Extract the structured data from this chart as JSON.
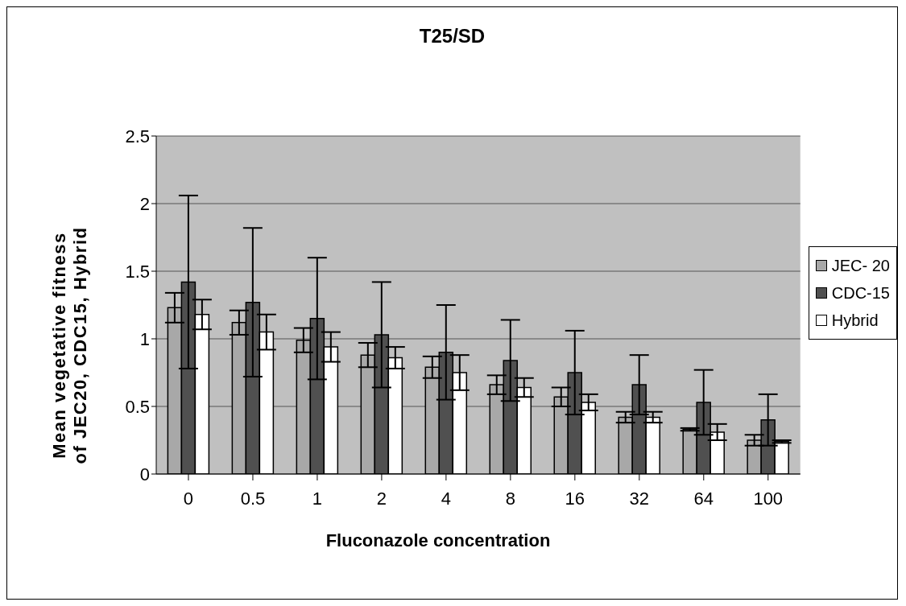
{
  "chart_data": {
    "type": "bar",
    "title": "T25/SD",
    "xlabel": "Fluconazole concentration",
    "ylabel": "Mean vegetative fitness of JEC20, CDC15, Hybrid",
    "categories": [
      "0",
      "0.5",
      "1",
      "2",
      "4",
      "8",
      "16",
      "32",
      "64",
      "100"
    ],
    "series": [
      {
        "name": "JEC- 20",
        "color": "#a8a8a8",
        "values": [
          1.23,
          1.12,
          0.99,
          0.88,
          0.79,
          0.66,
          0.57,
          0.42,
          0.33,
          0.25
        ],
        "errors": [
          0.11,
          0.09,
          0.09,
          0.09,
          0.08,
          0.07,
          0.07,
          0.04,
          0.01,
          0.04
        ]
      },
      {
        "name": "CDC-15",
        "color": "#505050",
        "values": [
          1.42,
          1.27,
          1.15,
          1.03,
          0.9,
          0.84,
          0.75,
          0.66,
          0.53,
          0.4
        ],
        "errors": [
          0.64,
          0.55,
          0.45,
          0.39,
          0.35,
          0.3,
          0.31,
          0.22,
          0.24,
          0.19
        ]
      },
      {
        "name": "Hybrid",
        "color": "#ffffff",
        "values": [
          1.18,
          1.05,
          0.94,
          0.86,
          0.75,
          0.64,
          0.53,
          0.42,
          0.31,
          0.24
        ],
        "errors": [
          0.11,
          0.13,
          0.11,
          0.08,
          0.13,
          0.07,
          0.06,
          0.04,
          0.06,
          0.01
        ]
      }
    ],
    "ylim": [
      0,
      2.5
    ],
    "yticks": [
      0,
      0.5,
      1,
      1.5,
      2,
      2.5
    ],
    "grid": "y",
    "legend": "right"
  }
}
